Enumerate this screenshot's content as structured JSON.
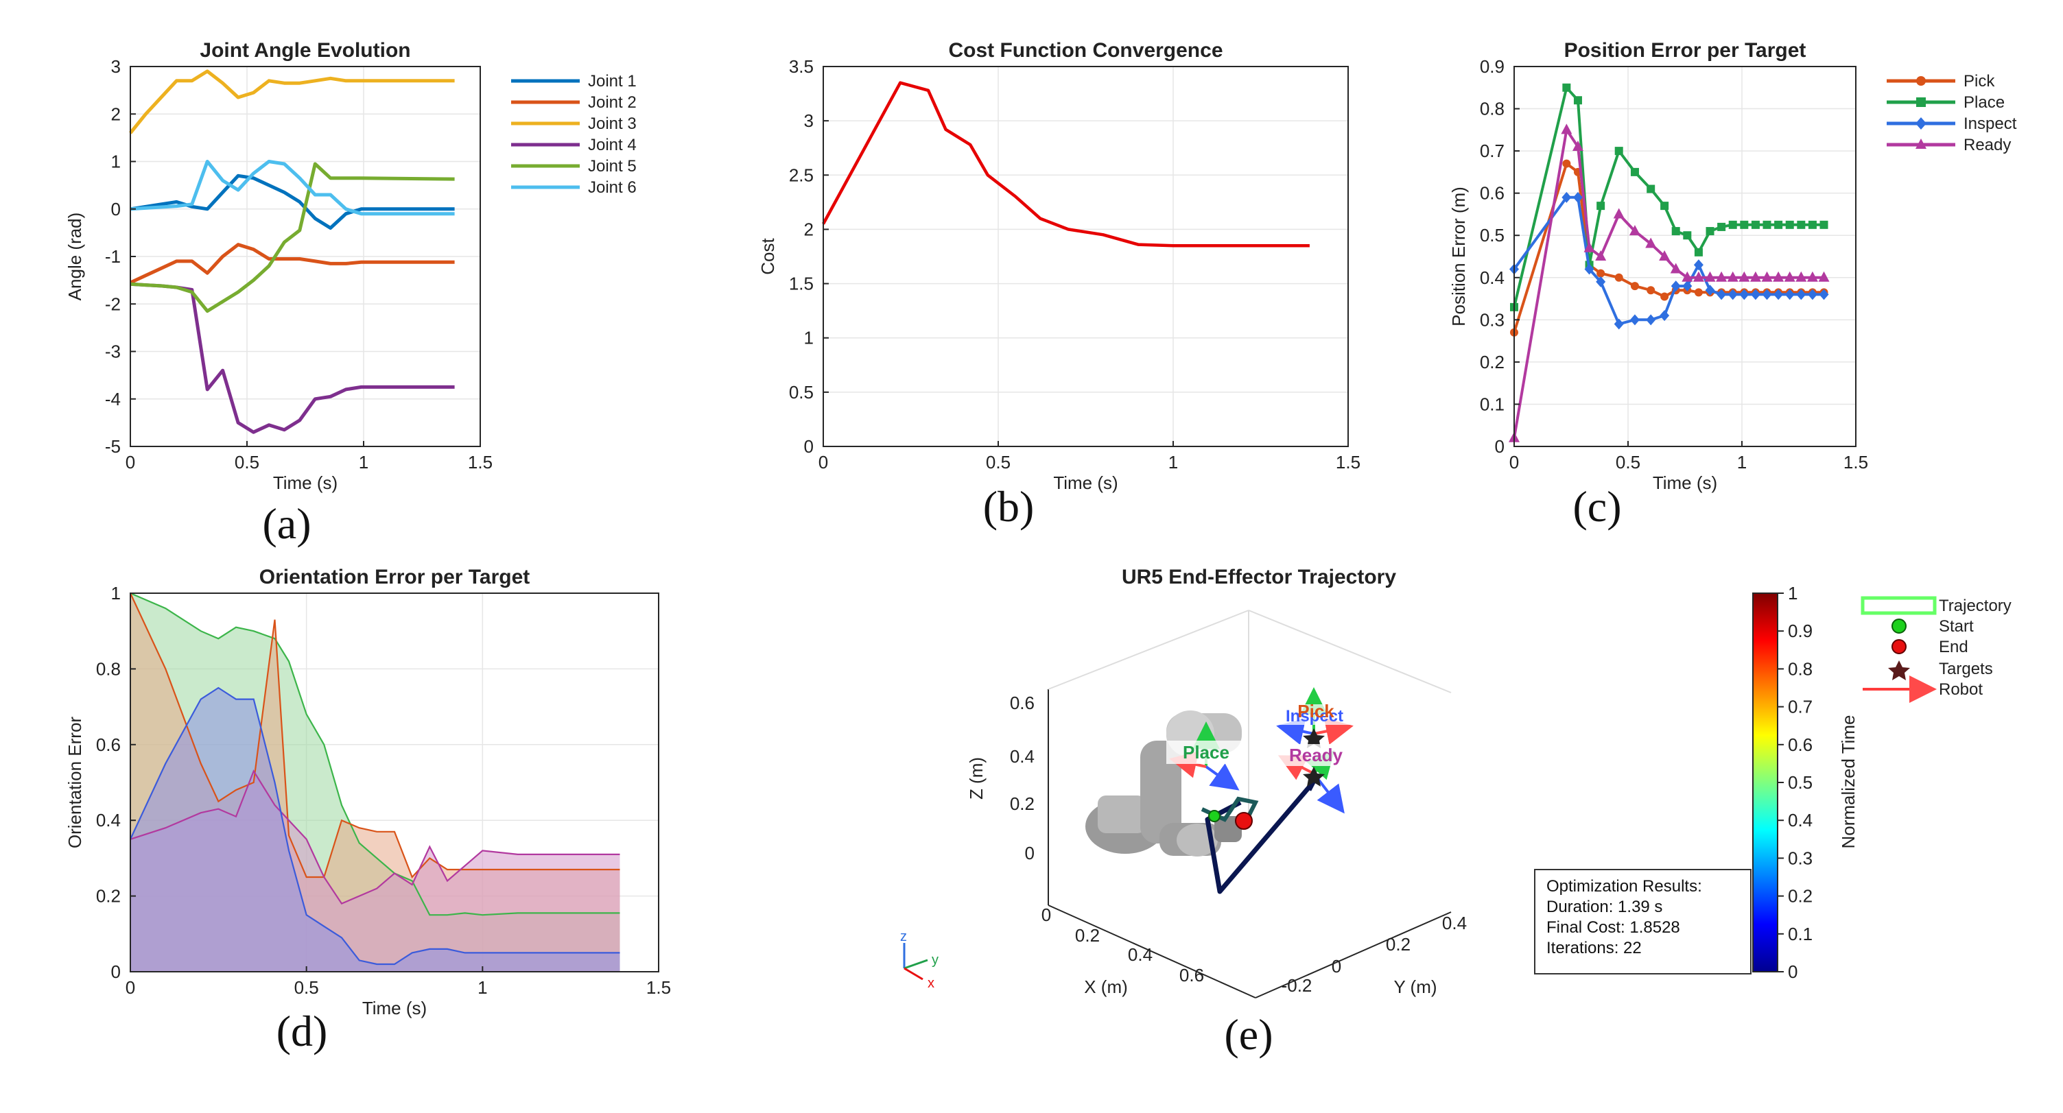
{
  "chart_data": [
    {
      "id": "a",
      "panel_label": "(a)",
      "type": "line",
      "title": "Joint Angle Evolution",
      "xlabel": "Time (s)",
      "ylabel": "Angle (rad)",
      "xlim": [
        0,
        1.5
      ],
      "ylim": [
        -5,
        3
      ],
      "xticks": [
        0,
        0.5,
        1,
        1.5
      ],
      "yticks": [
        -5,
        -4,
        -3,
        -2,
        -1,
        0,
        1,
        2,
        3
      ],
      "xtick_labels": [
        "0",
        "0.5",
        "1",
        "1.5"
      ],
      "ytick_labels": [
        "-5",
        "-4",
        "-3",
        "-2",
        "-1",
        "0",
        "1",
        "2",
        "3"
      ],
      "grid": true,
      "legend": "outside-right",
      "x": [
        0,
        0.066,
        0.132,
        0.198,
        0.264,
        0.33,
        0.396,
        0.462,
        0.528,
        0.594,
        0.66,
        0.726,
        0.792,
        0.858,
        0.924,
        0.99,
        1.39
      ],
      "series": [
        {
          "name": "Joint 1",
          "color": "#0072BD",
          "values": [
            0.0,
            0.05,
            0.1,
            0.15,
            0.05,
            0.0,
            0.35,
            0.7,
            0.65,
            0.5,
            0.35,
            0.15,
            -0.2,
            -0.4,
            -0.1,
            0.0,
            0.0
          ]
        },
        {
          "name": "Joint 2",
          "color": "#D95319",
          "values": [
            -1.55,
            -1.4,
            -1.25,
            -1.1,
            -1.1,
            -1.35,
            -1.0,
            -0.75,
            -0.85,
            -1.05,
            -1.05,
            -1.05,
            -1.1,
            -1.15,
            -1.15,
            -1.12,
            -1.12
          ]
        },
        {
          "name": "Joint 3",
          "color": "#EDB120",
          "values": [
            1.6,
            2.0,
            2.35,
            2.7,
            2.7,
            2.9,
            2.65,
            2.35,
            2.45,
            2.7,
            2.65,
            2.65,
            2.7,
            2.75,
            2.7,
            2.7,
            2.7
          ]
        },
        {
          "name": "Joint 4",
          "color": "#7E2F8E",
          "values": [
            -1.58,
            -1.6,
            -1.62,
            -1.65,
            -1.7,
            -3.8,
            -3.4,
            -4.5,
            -4.7,
            -4.55,
            -4.65,
            -4.45,
            -4.0,
            -3.95,
            -3.8,
            -3.75,
            -3.75
          ]
        },
        {
          "name": "Joint 5",
          "color": "#77AC30",
          "values": [
            -1.58,
            -1.6,
            -1.62,
            -1.65,
            -1.75,
            -2.15,
            -1.95,
            -1.75,
            -1.5,
            -1.2,
            -0.7,
            -0.45,
            0.95,
            0.65,
            0.65,
            0.65,
            0.63
          ]
        },
        {
          "name": "Joint 6",
          "color": "#4DBEEE",
          "values": [
            0.0,
            0.02,
            0.04,
            0.06,
            0.1,
            1.0,
            0.6,
            0.4,
            0.75,
            1.0,
            0.95,
            0.65,
            0.3,
            0.3,
            0.0,
            -0.1,
            -0.1
          ]
        }
      ]
    },
    {
      "id": "b",
      "panel_label": "(b)",
      "type": "line",
      "title": "Cost Function Convergence",
      "xlabel": "Time (s)",
      "ylabel": "Cost",
      "xlim": [
        0,
        1.5
      ],
      "ylim": [
        0,
        3.5
      ],
      "xticks": [
        0,
        0.5,
        1,
        1.5
      ],
      "yticks": [
        0,
        0.5,
        1,
        1.5,
        2,
        2.5,
        3,
        3.5
      ],
      "xtick_labels": [
        "0",
        "0.5",
        "1",
        "1.5"
      ],
      "ytick_labels": [
        "0",
        "0.5",
        "1",
        "1.5",
        "2",
        "2.5",
        "3",
        "3.5"
      ],
      "grid": true,
      "x": [
        0,
        0.22,
        0.3,
        0.35,
        0.42,
        0.47,
        0.55,
        0.62,
        0.7,
        0.8,
        0.9,
        1.0,
        1.39
      ],
      "series": [
        {
          "color": "#E60000",
          "values": [
            2.05,
            3.35,
            3.28,
            2.92,
            2.78,
            2.5,
            2.3,
            2.1,
            2.0,
            1.95,
            1.86,
            1.85,
            1.85
          ]
        }
      ]
    },
    {
      "id": "c",
      "panel_label": "(c)",
      "type": "line",
      "title": "Position Error per Target",
      "xlabel": "Time (s)",
      "ylabel": "Position Error (m)",
      "xlim": [
        0,
        1.5
      ],
      "ylim": [
        0,
        0.9
      ],
      "xticks": [
        0,
        0.5,
        1,
        1.5
      ],
      "yticks": [
        0,
        0.1,
        0.2,
        0.3,
        0.4,
        0.5,
        0.6,
        0.7,
        0.8,
        0.9
      ],
      "xtick_labels": [
        "0",
        "0.5",
        "1",
        "1.5"
      ],
      "ytick_labels": [
        "0",
        "0.1",
        "0.2",
        "0.3",
        "0.4",
        "0.5",
        "0.6",
        "0.7",
        "0.8",
        "0.9"
      ],
      "grid": true,
      "legend": "outside-right",
      "x": [
        0,
        0.23,
        0.28,
        0.33,
        0.38,
        0.46,
        0.53,
        0.6,
        0.66,
        0.71,
        0.76,
        0.81,
        0.86,
        0.91,
        0.96,
        1.01,
        1.06,
        1.11,
        1.16,
        1.21,
        1.26,
        1.31,
        1.36
      ],
      "series": [
        {
          "name": "Pick",
          "color": "#D95319",
          "marker": "circle",
          "values": [
            0.27,
            0.67,
            0.65,
            0.43,
            0.41,
            0.4,
            0.38,
            0.37,
            0.355,
            0.37,
            0.37,
            0.365,
            0.365,
            0.365,
            0.365,
            0.365,
            0.365,
            0.365,
            0.365,
            0.365,
            0.365,
            0.365,
            0.365
          ]
        },
        {
          "name": "Place",
          "color": "#20A04A",
          "marker": "square",
          "values": [
            0.33,
            0.85,
            0.82,
            0.43,
            0.57,
            0.7,
            0.65,
            0.61,
            0.57,
            0.51,
            0.5,
            0.46,
            0.51,
            0.52,
            0.525,
            0.525,
            0.525,
            0.525,
            0.525,
            0.525,
            0.525,
            0.525,
            0.525
          ]
        },
        {
          "name": "Inspect",
          "color": "#2F6FE0",
          "marker": "diamond",
          "values": [
            0.42,
            0.59,
            0.59,
            0.42,
            0.39,
            0.29,
            0.3,
            0.3,
            0.31,
            0.38,
            0.38,
            0.43,
            0.37,
            0.36,
            0.36,
            0.36,
            0.36,
            0.36,
            0.36,
            0.36,
            0.36,
            0.36,
            0.36
          ]
        },
        {
          "name": "Ready",
          "color": "#B2399F",
          "marker": "triangle",
          "values": [
            0.02,
            0.75,
            0.71,
            0.47,
            0.45,
            0.55,
            0.51,
            0.48,
            0.45,
            0.42,
            0.4,
            0.4,
            0.4,
            0.4,
            0.4,
            0.4,
            0.4,
            0.4,
            0.4,
            0.4,
            0.4,
            0.4,
            0.4
          ]
        }
      ]
    },
    {
      "id": "d",
      "panel_label": "(d)",
      "type": "area",
      "title": "Orientation Error per Target",
      "xlabel": "Time (s)",
      "ylabel": "Orientation Error",
      "xlim": [
        0,
        1.5
      ],
      "ylim": [
        0,
        1
      ],
      "xticks": [
        0,
        0.5,
        1,
        1.5
      ],
      "yticks": [
        0,
        0.2,
        0.4,
        0.6,
        0.8,
        1
      ],
      "xtick_labels": [
        "0",
        "0.5",
        "1",
        "1.5"
      ],
      "ytick_labels": [
        "0",
        "0.2",
        "0.4",
        "0.6",
        "0.8",
        "1"
      ],
      "grid": true,
      "x": [
        0,
        0.1,
        0.2,
        0.25,
        0.3,
        0.35,
        0.41,
        0.45,
        0.5,
        0.55,
        0.6,
        0.65,
        0.7,
        0.75,
        0.8,
        0.85,
        0.9,
        0.95,
        1.0,
        1.1,
        1.2,
        1.3,
        1.39
      ],
      "series": [
        {
          "color": "#3CB54A",
          "fill": "#9ED9A3",
          "values": [
            1.0,
            0.96,
            0.9,
            0.88,
            0.91,
            0.9,
            0.88,
            0.82,
            0.68,
            0.6,
            0.44,
            0.34,
            0.3,
            0.26,
            0.24,
            0.15,
            0.15,
            0.155,
            0.15,
            0.155,
            0.155,
            0.155,
            0.155
          ]
        },
        {
          "color": "#D95319",
          "fill": "#E7A98A",
          "values": [
            1.0,
            0.8,
            0.55,
            0.45,
            0.48,
            0.5,
            0.93,
            0.36,
            0.25,
            0.25,
            0.4,
            0.38,
            0.37,
            0.37,
            0.25,
            0.3,
            0.27,
            0.27,
            0.27,
            0.27,
            0.27,
            0.27,
            0.27
          ]
        },
        {
          "color": "#B2399F",
          "fill": "#D59BCB",
          "values": [
            0.35,
            0.38,
            0.42,
            0.43,
            0.41,
            0.53,
            0.44,
            0.4,
            0.35,
            0.25,
            0.18,
            0.2,
            0.22,
            0.26,
            0.23,
            0.33,
            0.24,
            0.28,
            0.32,
            0.31,
            0.31,
            0.31,
            0.31
          ]
        },
        {
          "color": "#3B5BDB",
          "fill": "#8E92E3",
          "values": [
            0.35,
            0.55,
            0.72,
            0.75,
            0.72,
            0.72,
            0.5,
            0.32,
            0.15,
            0.12,
            0.09,
            0.03,
            0.02,
            0.02,
            0.05,
            0.06,
            0.06,
            0.05,
            0.05,
            0.05,
            0.05,
            0.05,
            0.05
          ]
        }
      ]
    }
  ],
  "trajectory_panel": {
    "panel_label": "(e)",
    "title": "UR5 End-Effector Trajectory",
    "xlabel": "X (m)",
    "ylabel": "Y (m)",
    "zlabel": "Z (m)",
    "z_ticks": [
      "0.6",
      "0.4",
      "0.2",
      "0"
    ],
    "x_ticks": [
      "0",
      "0.2",
      "0.4",
      "0.6"
    ],
    "y_ticks": [
      "0.4",
      "0.2",
      "0",
      "-0.2"
    ],
    "target_labels": {
      "pick": "Pick",
      "place": "Place",
      "inspect": "Inspect",
      "ready": "Ready"
    },
    "triad": {
      "x": "x",
      "y": "y",
      "z": "z"
    },
    "legend": [
      {
        "label": "Trajectory",
        "symbol": "rect",
        "color": "#66FF66"
      },
      {
        "label": "Start",
        "symbol": "circle",
        "color": "#1DD11D"
      },
      {
        "label": "End",
        "symbol": "circle",
        "color": "#E81010"
      },
      {
        "label": "Targets",
        "symbol": "star",
        "color": "#5A1A1A"
      },
      {
        "label": "Robot",
        "symbol": "arrow",
        "color": "#FF3B3B"
      }
    ],
    "colorbar": {
      "label": "Normalized Time",
      "ticks": [
        "1",
        "0.9",
        "0.8",
        "0.7",
        "0.6",
        "0.5",
        "0.4",
        "0.3",
        "0.2",
        "0.1",
        "0"
      ]
    },
    "info_box": {
      "title": "Optimization Results:",
      "lines": [
        "Duration: 1.39 s",
        "Final Cost: 1.8528",
        "Iterations: 22"
      ]
    }
  }
}
